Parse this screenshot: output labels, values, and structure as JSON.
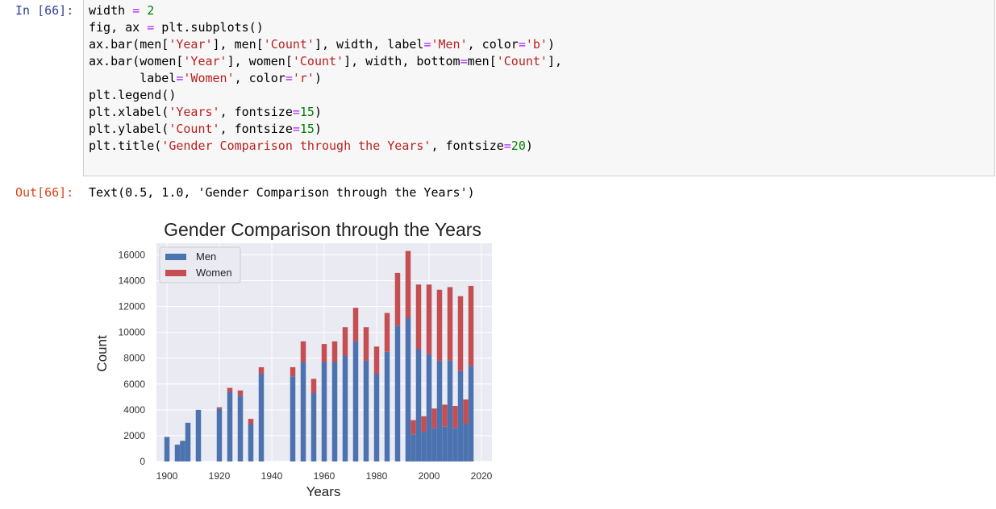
{
  "cell": {
    "in_prompt": "In [66]:",
    "out_prompt": "Out[66]:",
    "code_lines": [
      [
        [
          "t",
          "width "
        ],
        [
          "o",
          "="
        ],
        [
          "t",
          " "
        ],
        [
          "n",
          "2"
        ]
      ],
      [
        [
          "t",
          "fig, ax "
        ],
        [
          "o",
          "="
        ],
        [
          "t",
          " plt.subplots()"
        ]
      ],
      [
        [
          "t",
          "ax.bar(men["
        ],
        [
          "s",
          "'Year'"
        ],
        [
          "t",
          "], men["
        ],
        [
          "s",
          "'Count'"
        ],
        [
          "t",
          "], width, label"
        ],
        [
          "o",
          "="
        ],
        [
          "s",
          "'Men'"
        ],
        [
          "t",
          ", color"
        ],
        [
          "o",
          "="
        ],
        [
          "s",
          "'b'"
        ],
        [
          "t",
          ")"
        ]
      ],
      [
        [
          "t",
          "ax.bar(women["
        ],
        [
          "s",
          "'Year'"
        ],
        [
          "t",
          "], women["
        ],
        [
          "s",
          "'Count'"
        ],
        [
          "t",
          "], width, bottom"
        ],
        [
          "o",
          "="
        ],
        [
          "t",
          "men["
        ],
        [
          "s",
          "'Count'"
        ],
        [
          "t",
          "],"
        ]
      ],
      [
        [
          "t",
          "       label"
        ],
        [
          "o",
          "="
        ],
        [
          "s",
          "'Women'"
        ],
        [
          "t",
          ", color"
        ],
        [
          "o",
          "="
        ],
        [
          "s",
          "'r'"
        ],
        [
          "t",
          ")"
        ]
      ],
      [
        [
          "t",
          "plt.legend()"
        ]
      ],
      [
        [
          "t",
          "plt.xlabel("
        ],
        [
          "s",
          "'Years'"
        ],
        [
          "t",
          ", fontsize"
        ],
        [
          "o",
          "="
        ],
        [
          "n",
          "15"
        ],
        [
          "t",
          ")"
        ]
      ],
      [
        [
          "t",
          "plt.ylabel("
        ],
        [
          "s",
          "'Count'"
        ],
        [
          "t",
          ", fontsize"
        ],
        [
          "o",
          "="
        ],
        [
          "n",
          "15"
        ],
        [
          "t",
          ")"
        ]
      ],
      [
        [
          "t",
          "plt.title("
        ],
        [
          "s",
          "'Gender Comparison through the Years'"
        ],
        [
          "t",
          ", fontsize"
        ],
        [
          "o",
          "="
        ],
        [
          "n",
          "20"
        ],
        [
          "t",
          ")"
        ]
      ]
    ],
    "output_text": "Text(0.5, 1.0, 'Gender Comparison through the Years')"
  },
  "chart_data": {
    "type": "bar",
    "stacked": true,
    "title": "Gender Comparison through the Years",
    "xlabel": "Years",
    "ylabel": "Count",
    "xlim": [
      1896,
      2024
    ],
    "ylim": [
      0,
      16900
    ],
    "xticks": [
      "1900",
      "1920",
      "1940",
      "1960",
      "1980",
      "2000",
      "2020"
    ],
    "yticks": [
      "0",
      "2000",
      "4000",
      "6000",
      "8000",
      "10000",
      "12000",
      "14000",
      "16000"
    ],
    "grid": true,
    "legend_position": "top-left",
    "series": [
      {
        "name": "Men",
        "color": "#4c72b0",
        "x": [
          1900,
          1904,
          1906,
          1908,
          1912,
          1920,
          1924,
          1928,
          1932,
          1936,
          1948,
          1952,
          1956,
          1960,
          1964,
          1968,
          1972,
          1976,
          1980,
          1984,
          1988,
          1992,
          1994,
          1996,
          1998,
          2000,
          2002,
          2004,
          2006,
          2008,
          2010,
          2012,
          2014,
          2016
        ],
        "values": [
          1900,
          1300,
          1600,
          3000,
          4000,
          4100,
          5400,
          5100,
          2900,
          6800,
          6600,
          7700,
          5300,
          7700,
          7700,
          8200,
          9300,
          7800,
          6800,
          8500,
          10500,
          11100,
          2100,
          8700,
          2300,
          8300,
          2600,
          7800,
          2700,
          7800,
          2600,
          7000,
          2900,
          7400
        ]
      },
      {
        "name": "Women",
        "color": "#c44e52",
        "x": [
          1900,
          1904,
          1906,
          1908,
          1912,
          1920,
          1924,
          1928,
          1932,
          1936,
          1948,
          1952,
          1956,
          1960,
          1964,
          1968,
          1972,
          1976,
          1980,
          1984,
          1988,
          1992,
          1994,
          1996,
          1998,
          2000,
          2002,
          2004,
          2006,
          2008,
          2010,
          2012,
          2014,
          2016
        ],
        "values": [
          0,
          0,
          0,
          0,
          0,
          100,
          300,
          400,
          400,
          500,
          700,
          1600,
          1100,
          1400,
          1600,
          2200,
          2600,
          2600,
          2100,
          3000,
          4100,
          5200,
          1100,
          5000,
          1200,
          5400,
          1500,
          5500,
          1700,
          5700,
          1700,
          5800,
          1900,
          6200
        ]
      }
    ]
  }
}
